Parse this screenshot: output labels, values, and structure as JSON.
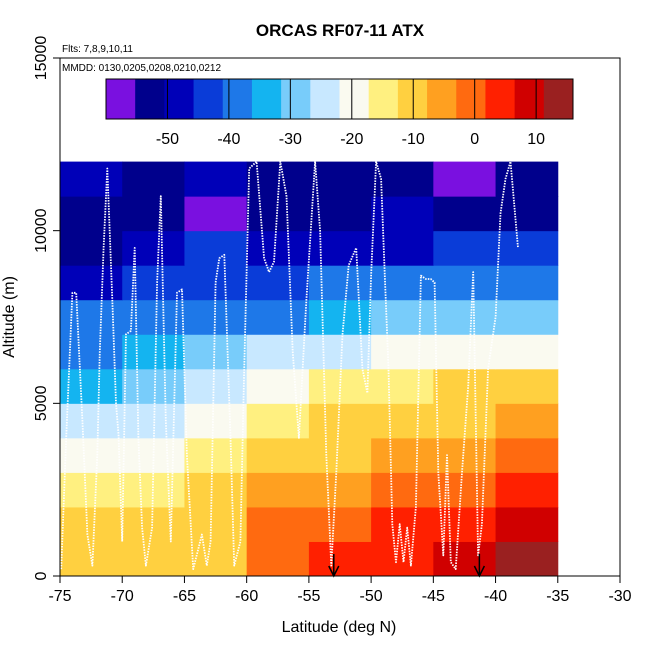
{
  "chart_data": {
    "type": "heatmap",
    "title": "ORCAS RF07-11 ATX",
    "flights_note": "Flts: 7,8,9,10,11",
    "dates_note": "MMDD: 0130,0205,0208,0210,0212",
    "xlabel": "Latitude (deg N)",
    "ylabel": "Altitude (m)",
    "xlim": [
      -75,
      -30
    ],
    "ylim": [
      0,
      15000
    ],
    "x_ticks": [
      -75,
      -70,
      -65,
      -60,
      -55,
      -50,
      -45,
      -40,
      -35,
      -30
    ],
    "y_ticks": [
      0,
      5000,
      10000,
      15000
    ],
    "colorbar": {
      "range": [
        -60,
        16
      ],
      "ticks": [
        -50,
        -40,
        -30,
        -20,
        -10,
        0,
        10
      ],
      "palette": [
        "#7a10e0",
        "#00008c",
        "#0000b8",
        "#0a3cd8",
        "#1e78e8",
        "#14b4f0",
        "#78ccfa",
        "#c8e8ff",
        "#fafaf0",
        "#fff080",
        "#ffd040",
        "#ffa020",
        "#ff6a10",
        "#ff2000",
        "#d00000",
        "#9a2020"
      ]
    },
    "cells": {
      "x_edges": [
        -75,
        -70,
        -65,
        -60,
        -55,
        -50,
        -45,
        -40,
        -35
      ],
      "y_edges": [
        0,
        1000,
        2000,
        3000,
        4000,
        5000,
        6000,
        7000,
        8000,
        9000,
        10000,
        11000,
        12000
      ],
      "values": [
        [
          -9,
          -9,
          -8,
          0,
          2,
          5,
          9,
          13
        ],
        [
          -12,
          -11,
          -8,
          -3,
          0,
          3,
          5,
          8
        ],
        [
          -16,
          -14,
          -10,
          -7,
          -5,
          -3,
          0,
          3
        ],
        [
          -20,
          -19,
          -15,
          -12,
          -9,
          -7,
          -5,
          -2
        ],
        [
          -26,
          -24,
          -20,
          -13,
          -11,
          -9,
          -8,
          -6
        ],
        [
          -33,
          -31,
          -24,
          -19,
          -17,
          -14,
          -12,
          -11
        ],
        [
          -37,
          -35,
          -30,
          -25,
          -24,
          -22,
          -20,
          -20
        ],
        [
          -40,
          -38,
          -38,
          -37,
          -34,
          -31,
          -30,
          -31
        ],
        [
          -46,
          -43,
          -43,
          -42,
          -40,
          -38,
          -37,
          -37
        ],
        [
          -52,
          -50,
          -45,
          -46,
          -47,
          -46,
          -45,
          -43
        ],
        [
          -51,
          -52,
          -58,
          -51,
          -51,
          -49,
          -52,
          -51
        ],
        [
          -49,
          -51,
          -49,
          -51,
          -51,
          -52,
          -56,
          -52
        ]
      ]
    },
    "flight_track_points": [
      [
        -74.9,
        200
      ],
      [
        -74.5,
        4000
      ],
      [
        -74.0,
        8200
      ],
      [
        -73.7,
        8200
      ],
      [
        -73.2,
        4500
      ],
      [
        -72.8,
        1200
      ],
      [
        -72.4,
        300
      ],
      [
        -72.0,
        3500
      ],
      [
        -71.8,
        6500
      ],
      [
        -71.5,
        9500
      ],
      [
        -71.2,
        11800
      ],
      [
        -70.8,
        8000
      ],
      [
        -70.5,
        5000
      ],
      [
        -70.3,
        4100
      ],
      [
        -70.0,
        1000
      ],
      [
        -69.7,
        7000
      ],
      [
        -69.3,
        7100
      ],
      [
        -69.0,
        9500
      ],
      [
        -68.7,
        4000
      ],
      [
        -68.4,
        1400
      ],
      [
        -68.1,
        300
      ],
      [
        -67.6,
        1400
      ],
      [
        -67.2,
        8500
      ],
      [
        -66.9,
        11000
      ],
      [
        -66.5,
        4500
      ],
      [
        -66.1,
        1000
      ],
      [
        -65.6,
        8200
      ],
      [
        -65.2,
        8300
      ],
      [
        -64.8,
        3500
      ],
      [
        -64.3,
        200
      ],
      [
        -63.6,
        1200
      ],
      [
        -63.2,
        300
      ],
      [
        -62.9,
        1000
      ],
      [
        -62.5,
        8500
      ],
      [
        -62.2,
        9200
      ],
      [
        -61.8,
        9300
      ],
      [
        -61.3,
        4000
      ],
      [
        -61.0,
        300
      ],
      [
        -60.5,
        1000
      ],
      [
        -60.2,
        6000
      ],
      [
        -59.8,
        11800
      ],
      [
        -59.2,
        12000
      ],
      [
        -58.6,
        9200
      ],
      [
        -58.2,
        8800
      ],
      [
        -57.8,
        9100
      ],
      [
        -57.3,
        12000
      ],
      [
        -56.8,
        11000
      ],
      [
        -56.3,
        6500
      ],
      [
        -55.8,
        4000
      ],
      [
        -55.2,
        8000
      ],
      [
        -54.5,
        12000
      ],
      [
        -54.1,
        10000
      ],
      [
        -53.6,
        3500
      ],
      [
        -53.2,
        300
      ],
      [
        -52.8,
        3000
      ],
      [
        -52.3,
        7000
      ],
      [
        -51.8,
        9000
      ],
      [
        -51.2,
        9500
      ],
      [
        -50.7,
        6000
      ],
      [
        -50.3,
        5300
      ],
      [
        -50.0,
        8700
      ],
      [
        -49.6,
        12000
      ],
      [
        -49.2,
        11500
      ],
      [
        -48.9,
        8700
      ],
      [
        -48.6,
        6000
      ],
      [
        -48.3,
        1500
      ],
      [
        -48.0,
        400
      ],
      [
        -47.7,
        1500
      ],
      [
        -47.4,
        400
      ],
      [
        -47.1,
        1400
      ],
      [
        -46.8,
        300
      ],
      [
        -46.4,
        2000
      ],
      [
        -46.0,
        8700
      ],
      [
        -45.6,
        8600
      ],
      [
        -45.2,
        8600
      ],
      [
        -44.9,
        8500
      ],
      [
        -44.6,
        3000
      ],
      [
        -44.2,
        600
      ],
      [
        -43.9,
        3500
      ],
      [
        -43.6,
        400
      ],
      [
        -43.2,
        200
      ],
      [
        -42.7,
        3000
      ],
      [
        -42.2,
        5500
      ],
      [
        -41.8,
        8800
      ],
      [
        -41.4,
        600
      ],
      [
        -41.1,
        1500
      ],
      [
        -40.6,
        6000
      ],
      [
        -40.0,
        7500
      ],
      [
        -39.6,
        10500
      ],
      [
        -39.2,
        11500
      ],
      [
        -38.8,
        12000
      ],
      [
        -38.2,
        9500
      ]
    ],
    "arrow_markers_lat": [
      -53,
      -41.3
    ]
  }
}
